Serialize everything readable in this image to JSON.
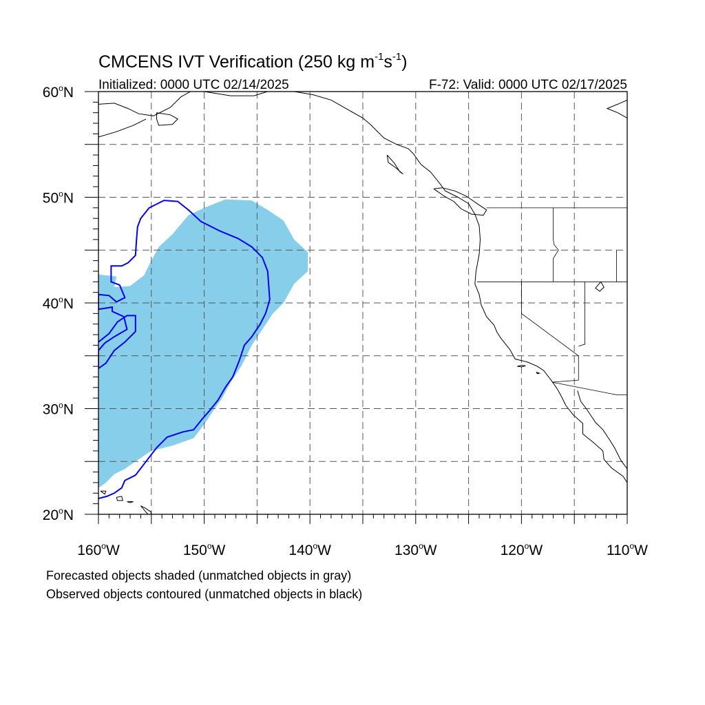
{
  "title": {
    "main": "CMCENS IVT Verification (250 kg m",
    "exp1": "-1",
    "unit_s": "s",
    "exp2": "-1",
    "close": ")"
  },
  "subtitle_left": "Initialized: 0000 UTC 02/14/2025",
  "subtitle_right": "F-72: Valid: 0000 UTC 02/17/2025",
  "map_extent": {
    "lon": [
      -160,
      -110
    ],
    "lat": [
      20,
      60
    ]
  },
  "lat_labels": [
    {
      "value": 60,
      "text": "60",
      "hemi": "N"
    },
    {
      "value": 50,
      "text": "50",
      "hemi": "N"
    },
    {
      "value": 40,
      "text": "40",
      "hemi": "N"
    },
    {
      "value": 30,
      "text": "30",
      "hemi": "N"
    },
    {
      "value": 20,
      "text": "20",
      "hemi": "N"
    }
  ],
  "lon_labels": [
    {
      "value": -160,
      "text": "160",
      "hemi": "W"
    },
    {
      "value": -150,
      "text": "150",
      "hemi": "W"
    },
    {
      "value": -140,
      "text": "140",
      "hemi": "W"
    },
    {
      "value": -130,
      "text": "130",
      "hemi": "W"
    },
    {
      "value": -120,
      "text": "120",
      "hemi": "W"
    },
    {
      "value": -110,
      "text": "110",
      "hemi": "W"
    }
  ],
  "gridlines": {
    "lat_step": 5,
    "lon_step": 5
  },
  "legend": {
    "line1": "Forecasted objects shaded (unmatched objects in gray)",
    "line2": "Observed objects contoured (unmatched objects in black)"
  },
  "colors": {
    "forecast_fill": "#87ceeb",
    "observed_contour": "#0000ee",
    "coastline": "#000000",
    "grid": "#555555"
  },
  "forecast_object": [
    [
      -160,
      22.5
    ],
    [
      -159.3,
      23
    ],
    [
      -158.5,
      23.8
    ],
    [
      -157.5,
      24.3
    ],
    [
      -156.5,
      25
    ],
    [
      -155,
      26
    ],
    [
      -153,
      26.5
    ],
    [
      -151,
      27.2
    ],
    [
      -150,
      28.5
    ],
    [
      -149,
      30
    ],
    [
      -148.3,
      31
    ],
    [
      -147.5,
      32.5
    ],
    [
      -146.5,
      34
    ],
    [
      -145.5,
      36
    ],
    [
      -144.5,
      37.5
    ],
    [
      -143.5,
      39
    ],
    [
      -142.5,
      40
    ],
    [
      -141.5,
      41.8
    ],
    [
      -140.2,
      43
    ],
    [
      -140.2,
      44.8
    ],
    [
      -141.5,
      46
    ],
    [
      -142.5,
      47.8
    ],
    [
      -144,
      48.8
    ],
    [
      -145.5,
      49.7
    ],
    [
      -148,
      49.8
    ],
    [
      -150,
      49
    ],
    [
      -151.5,
      48.3
    ],
    [
      -153,
      46.5
    ],
    [
      -154.3,
      45.3
    ],
    [
      -155,
      44
    ],
    [
      -155.7,
      42.6
    ],
    [
      -157,
      41.6
    ],
    [
      -158.5,
      41.5
    ],
    [
      -158.3,
      42.5
    ],
    [
      -160,
      42.7
    ]
  ],
  "observed_object": [
    [
      -160,
      21.5
    ],
    [
      -159.2,
      21.7
    ],
    [
      -158.5,
      22
    ],
    [
      -157.8,
      22.5
    ],
    [
      -157.5,
      23.2
    ],
    [
      -156.5,
      23.7
    ],
    [
      -155.5,
      25
    ],
    [
      -154.5,
      26.3
    ],
    [
      -153.5,
      27.3
    ],
    [
      -152,
      27.8
    ],
    [
      -151,
      28
    ],
    [
      -150.2,
      29
    ],
    [
      -149.5,
      29.8
    ],
    [
      -148.7,
      30.8
    ],
    [
      -148,
      32
    ],
    [
      -147.3,
      33
    ],
    [
      -146.7,
      34.5
    ],
    [
      -146.2,
      36
    ],
    [
      -145.5,
      36.8
    ],
    [
      -144.7,
      38
    ],
    [
      -144.2,
      39
    ],
    [
      -143.8,
      40.3
    ],
    [
      -144,
      43
    ],
    [
      -144.5,
      44.3
    ],
    [
      -145.5,
      45.3
    ],
    [
      -146.8,
      46.1
    ],
    [
      -148.5,
      46.8
    ],
    [
      -150.3,
      47.7
    ],
    [
      -151.5,
      48.8
    ],
    [
      -152.5,
      49.6
    ],
    [
      -153.8,
      49.7
    ],
    [
      -155.2,
      49
    ],
    [
      -156,
      48
    ],
    [
      -156.3,
      47.2
    ],
    [
      -156.4,
      46
    ],
    [
      -156.5,
      44.5
    ],
    [
      -157.2,
      43.8
    ],
    [
      -157.8,
      43.5
    ],
    [
      -158.8,
      43.5
    ],
    [
      -158.8,
      42
    ],
    [
      -158,
      41.7
    ],
    [
      -157.5,
      40.5
    ],
    [
      -158.3,
      40.1
    ],
    [
      -159,
      40.7
    ],
    [
      -160,
      40.8
    ],
    [
      -160,
      39.4
    ],
    [
      -158.7,
      39.6
    ],
    [
      -158.7,
      39.2
    ],
    [
      -157.6,
      38.7
    ],
    [
      -157.3,
      37.5
    ],
    [
      -158.5,
      36.8
    ],
    [
      -159.4,
      36.2
    ],
    [
      -160,
      35.5
    ],
    [
      -160,
      33.8
    ],
    [
      -159.3,
      34.3
    ],
    [
      -158.5,
      35.5
    ],
    [
      -157.5,
      36.3
    ],
    [
      -156.5,
      37.3
    ],
    [
      -156.5,
      38.8
    ],
    [
      -157.3,
      38.8
    ],
    [
      -158.2,
      38.2
    ],
    [
      -159,
      37.1
    ],
    [
      -160,
      36.3
    ]
  ],
  "coastlines": [
    [
      [
        -150,
        60
      ],
      [
        -147.5,
        59.6
      ],
      [
        -145.3,
        59.6
      ],
      [
        -144,
        60
      ],
      [
        -141.5,
        60
      ]
    ],
    [
      [
        -160,
        58.8
      ],
      [
        -158.5,
        58.9
      ],
      [
        -157.2,
        58.4
      ],
      [
        -156.2,
        57.9
      ],
      [
        -154.8,
        57.7
      ],
      [
        -153.2,
        58.5
      ],
      [
        -152.2,
        59.5
      ],
      [
        -151.3,
        60
      ]
    ],
    [
      [
        -154.5,
        58
      ],
      [
        -153.2,
        57.8
      ],
      [
        -152.5,
        57.4
      ],
      [
        -153,
        56.9
      ],
      [
        -154.3,
        56.8
      ],
      [
        -154.5,
        57.4
      ],
      [
        -154.5,
        58
      ]
    ],
    [
      [
        -160,
        55.7
      ],
      [
        -158.3,
        56.2
      ],
      [
        -156.7,
        56.8
      ],
      [
        -155.5,
        57.4
      ]
    ],
    [
      [
        -141.5,
        60
      ],
      [
        -139.7,
        59.7
      ],
      [
        -138,
        59.2
      ],
      [
        -136.6,
        58.4
      ],
      [
        -135,
        57.5
      ],
      [
        -134.3,
        56.9
      ],
      [
        -133,
        55.6
      ],
      [
        -131.8,
        55
      ],
      [
        -130.7,
        54.6
      ],
      [
        -130.2,
        54.1
      ],
      [
        -129.5,
        53.1
      ],
      [
        -128.6,
        52.4
      ],
      [
        -127.8,
        51.4
      ],
      [
        -127.2,
        50.6
      ],
      [
        -126,
        50
      ],
      [
        -125,
        49.4
      ],
      [
        -124.4,
        48.4
      ],
      [
        -124,
        47.3
      ],
      [
        -123.9,
        46
      ],
      [
        -124,
        44.6
      ],
      [
        -124.3,
        43
      ],
      [
        -124.4,
        41.8
      ],
      [
        -124,
        40.8
      ],
      [
        -123.8,
        39.8
      ],
      [
        -123.3,
        38.7
      ],
      [
        -122.6,
        37.9
      ],
      [
        -122.3,
        37.2
      ],
      [
        -121.9,
        36.6
      ],
      [
        -121.1,
        35.6
      ],
      [
        -120.6,
        34.7
      ],
      [
        -119.4,
        34.4
      ],
      [
        -118.5,
        34
      ],
      [
        -117.9,
        33.6
      ],
      [
        -117.2,
        32.7
      ],
      [
        -116.7,
        32
      ],
      [
        -116.3,
        31.3
      ],
      [
        -115.8,
        30.3
      ],
      [
        -115.1,
        29.4
      ],
      [
        -114.2,
        28.6
      ],
      [
        -114.2,
        27.6
      ],
      [
        -113.2,
        26.8
      ],
      [
        -112.3,
        26
      ],
      [
        -112.2,
        25.2
      ],
      [
        -111.5,
        24.4
      ],
      [
        -110.4,
        23.6
      ],
      [
        -110,
        23
      ]
    ],
    [
      [
        -114.7,
        31.7
      ],
      [
        -114.4,
        30.7
      ],
      [
        -113.8,
        29.9
      ],
      [
        -113,
        28.7
      ],
      [
        -112.3,
        28
      ],
      [
        -111.7,
        27.1
      ],
      [
        -111.2,
        26.3
      ],
      [
        -110.6,
        25.1
      ],
      [
        -110,
        24.3
      ]
    ],
    [
      [
        -128.3,
        50.8
      ],
      [
        -127.3,
        50.1
      ],
      [
        -126.4,
        49.6
      ],
      [
        -125.7,
        48.9
      ],
      [
        -124.7,
        48.4
      ],
      [
        -123.6,
        48.3
      ],
      [
        -123.3,
        48.8
      ],
      [
        -124.2,
        49.4
      ],
      [
        -125.2,
        50.1
      ],
      [
        -126.3,
        50.6
      ],
      [
        -127.5,
        50.9
      ],
      [
        -128.3,
        50.8
      ]
    ],
    [
      [
        -132.7,
        54
      ],
      [
        -132,
        53.2
      ],
      [
        -131.5,
        52.4
      ],
      [
        -131.2,
        52.2
      ],
      [
        -131.9,
        52.8
      ],
      [
        -132.6,
        53.3
      ],
      [
        -132.7,
        54
      ]
    ],
    [
      [
        -156,
        20.8
      ],
      [
        -155.5,
        20.2
      ],
      [
        -155.1,
        19.8
      ],
      [
        -155,
        20.2
      ],
      [
        -155.6,
        20.6
      ],
      [
        -156,
        20.8
      ]
    ],
    [
      [
        -158.3,
        21.6
      ],
      [
        -157.8,
        21.7
      ],
      [
        -157.7,
        21.3
      ],
      [
        -158.2,
        21.3
      ],
      [
        -158.3,
        21.6
      ]
    ],
    [
      [
        -159.8,
        22.2
      ],
      [
        -159.3,
        22.2
      ],
      [
        -159.4,
        21.9
      ],
      [
        -159.8,
        22.2
      ]
    ],
    [
      [
        -157.3,
        21.2
      ],
      [
        -156.7,
        21.2
      ],
      [
        -157,
        21.1
      ],
      [
        -157.3,
        21.2
      ]
    ],
    [
      [
        -110,
        57.5
      ],
      [
        -110.9,
        58
      ],
      [
        -111.9,
        58.4
      ],
      [
        -110.9,
        58.8
      ],
      [
        -110,
        59.2
      ]
    ],
    [
      [
        -112.5,
        42
      ],
      [
        -112.2,
        41.5
      ],
      [
        -112.6,
        41.1
      ],
      [
        -113,
        41.4
      ],
      [
        -112.5,
        42
      ]
    ],
    [
      [
        -120.4,
        34
      ],
      [
        -120,
        33.95
      ],
      [
        -119.6,
        34.05
      ],
      [
        -120,
        34.1
      ],
      [
        -120.4,
        34
      ]
    ],
    [
      [
        -118.6,
        33.45
      ],
      [
        -118.3,
        33.35
      ],
      [
        -118.5,
        33.3
      ],
      [
        -118.6,
        33.45
      ]
    ]
  ],
  "borders": [
    [
      [
        -141,
        60
      ],
      [
        -141,
        60
      ]
    ],
    [
      [
        -123.3,
        49
      ],
      [
        -110,
        49
      ]
    ],
    [
      [
        -124.2,
        42
      ],
      [
        -111,
        42
      ]
    ],
    [
      [
        -120,
        42
      ],
      [
        -120,
        39
      ],
      [
        -114.6,
        35
      ],
      [
        -114.6,
        32.7
      ],
      [
        -117.1,
        32.5
      ],
      [
        -111,
        31.3
      ],
      [
        -108.2,
        31.3
      ]
    ],
    [
      [
        -117,
        49
      ],
      [
        -117,
        46
      ],
      [
        -116.9,
        45.5
      ],
      [
        -116.5,
        45
      ],
      [
        -117,
        44.2
      ],
      [
        -117,
        42
      ]
    ],
    [
      [
        -114,
        42
      ],
      [
        -114,
        36.1
      ],
      [
        -114.6,
        35.9
      ]
    ],
    [
      [
        -111,
        45
      ],
      [
        -111,
        42
      ],
      [
        -110,
        42
      ]
    ]
  ]
}
